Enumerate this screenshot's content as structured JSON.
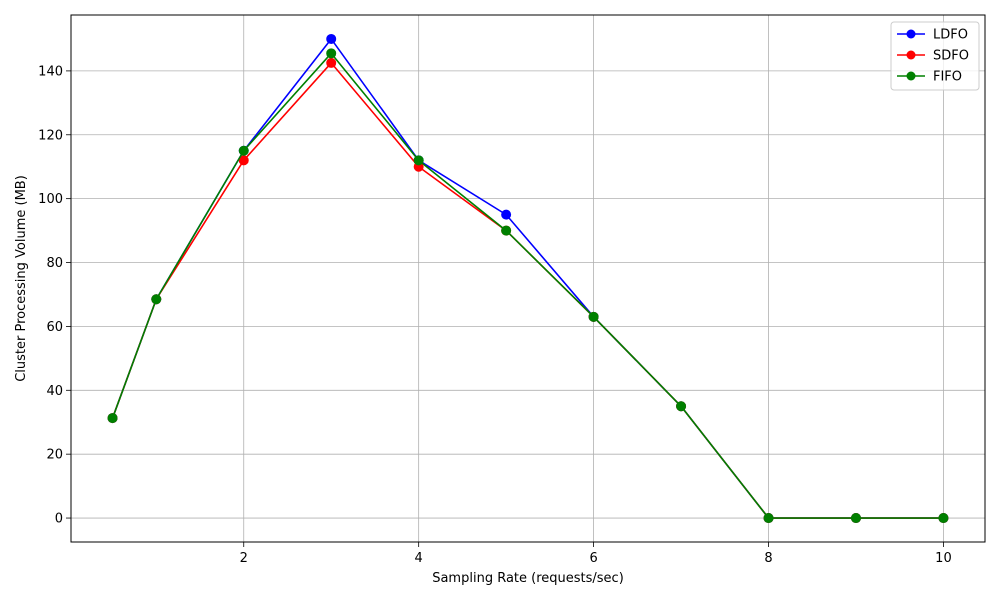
{
  "chart_data": {
    "type": "line",
    "title": "",
    "xlabel": "Sampling Rate (requests/sec)",
    "ylabel": "Cluster Processing Volume (MB)",
    "xlim": [
      0.025,
      10.475
    ],
    "ylim": [
      -7.5,
      157.5
    ],
    "xticks": [
      2,
      4,
      6,
      8,
      10
    ],
    "yticks": [
      0,
      20,
      40,
      60,
      80,
      100,
      120,
      140
    ],
    "grid": true,
    "legend_position": "top-right",
    "marker": "circle",
    "x": [
      0.5,
      1,
      2,
      3,
      4,
      5,
      6,
      7,
      8,
      9,
      10
    ],
    "series": [
      {
        "name": "LDFO",
        "color": "#0000ff",
        "values": [
          31.3,
          68.5,
          115,
          150,
          112,
          95,
          63,
          35,
          0,
          0,
          0
        ]
      },
      {
        "name": "SDFO",
        "color": "#ff0000",
        "values": [
          31.3,
          68.5,
          112,
          142.5,
          110,
          90,
          63,
          35,
          0,
          0,
          0
        ]
      },
      {
        "name": "FIFO",
        "color": "#008000",
        "values": [
          31.3,
          68.5,
          115,
          145.5,
          112,
          90,
          63,
          35,
          0,
          0,
          0
        ]
      }
    ]
  }
}
